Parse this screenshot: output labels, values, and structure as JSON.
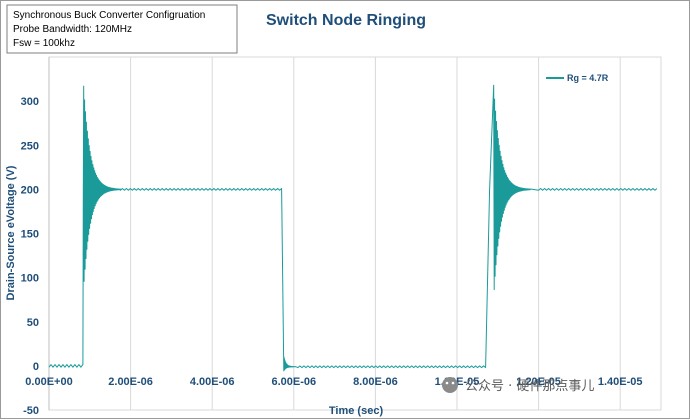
{
  "chart_data": {
    "type": "line",
    "title": "Switch Node Ringing",
    "xlabel": "Time (sec)",
    "ylabel": "Drain-Source eVoltage (V)",
    "xlim": [
      0,
      1.5e-05
    ],
    "ylim": [
      -50,
      350
    ],
    "x_ticks": [
      "0.00E+00",
      "2.00E-06",
      "4.00E-06",
      "6.00E-06",
      "8.00E-06",
      "1.00E-05",
      "1.20E-05",
      "1.40E-05"
    ],
    "x_tick_values": [
      0,
      2e-06,
      4e-06,
      6e-06,
      8e-06,
      1e-05,
      1.2e-05,
      1.4e-05
    ],
    "y_ticks": [
      "-50",
      "0",
      "50",
      "100",
      "150",
      "200",
      "250",
      "300"
    ],
    "y_tick_values": [
      -50,
      0,
      50,
      100,
      150,
      200,
      250,
      300
    ],
    "grid": "vertical",
    "series": [
      {
        "name": "Rg = 4.7R",
        "color": "#1a9b9a",
        "x": [
          0,
          8.3e-07,
          8.4e-07,
          8.5e-07,
          1e-06,
          1.5e-06,
          2e-06,
          4e-06,
          5.7e-06,
          5.75e-06,
          5.8e-06,
          6.2e-06,
          8e-06,
          1.07e-05,
          1.08e-05,
          1.09e-05,
          1.11e-05,
          1.2e-05,
          1.4e-05,
          1.49e-05
        ],
        "y": [
          0,
          0,
          200,
          317,
          200,
          199,
          200,
          200,
          200,
          0,
          -4,
          -1,
          -1,
          0,
          200,
          318,
          200,
          199,
          200,
          200
        ]
      }
    ],
    "legend": "top-right",
    "annotation_lines": [
      "Synchronous Buck Converter Configruation",
      "Probe Bandwidth: 120MHz",
      "Fsw = 100khz"
    ]
  },
  "watermark": "公众号 · 硬件那点事儿"
}
